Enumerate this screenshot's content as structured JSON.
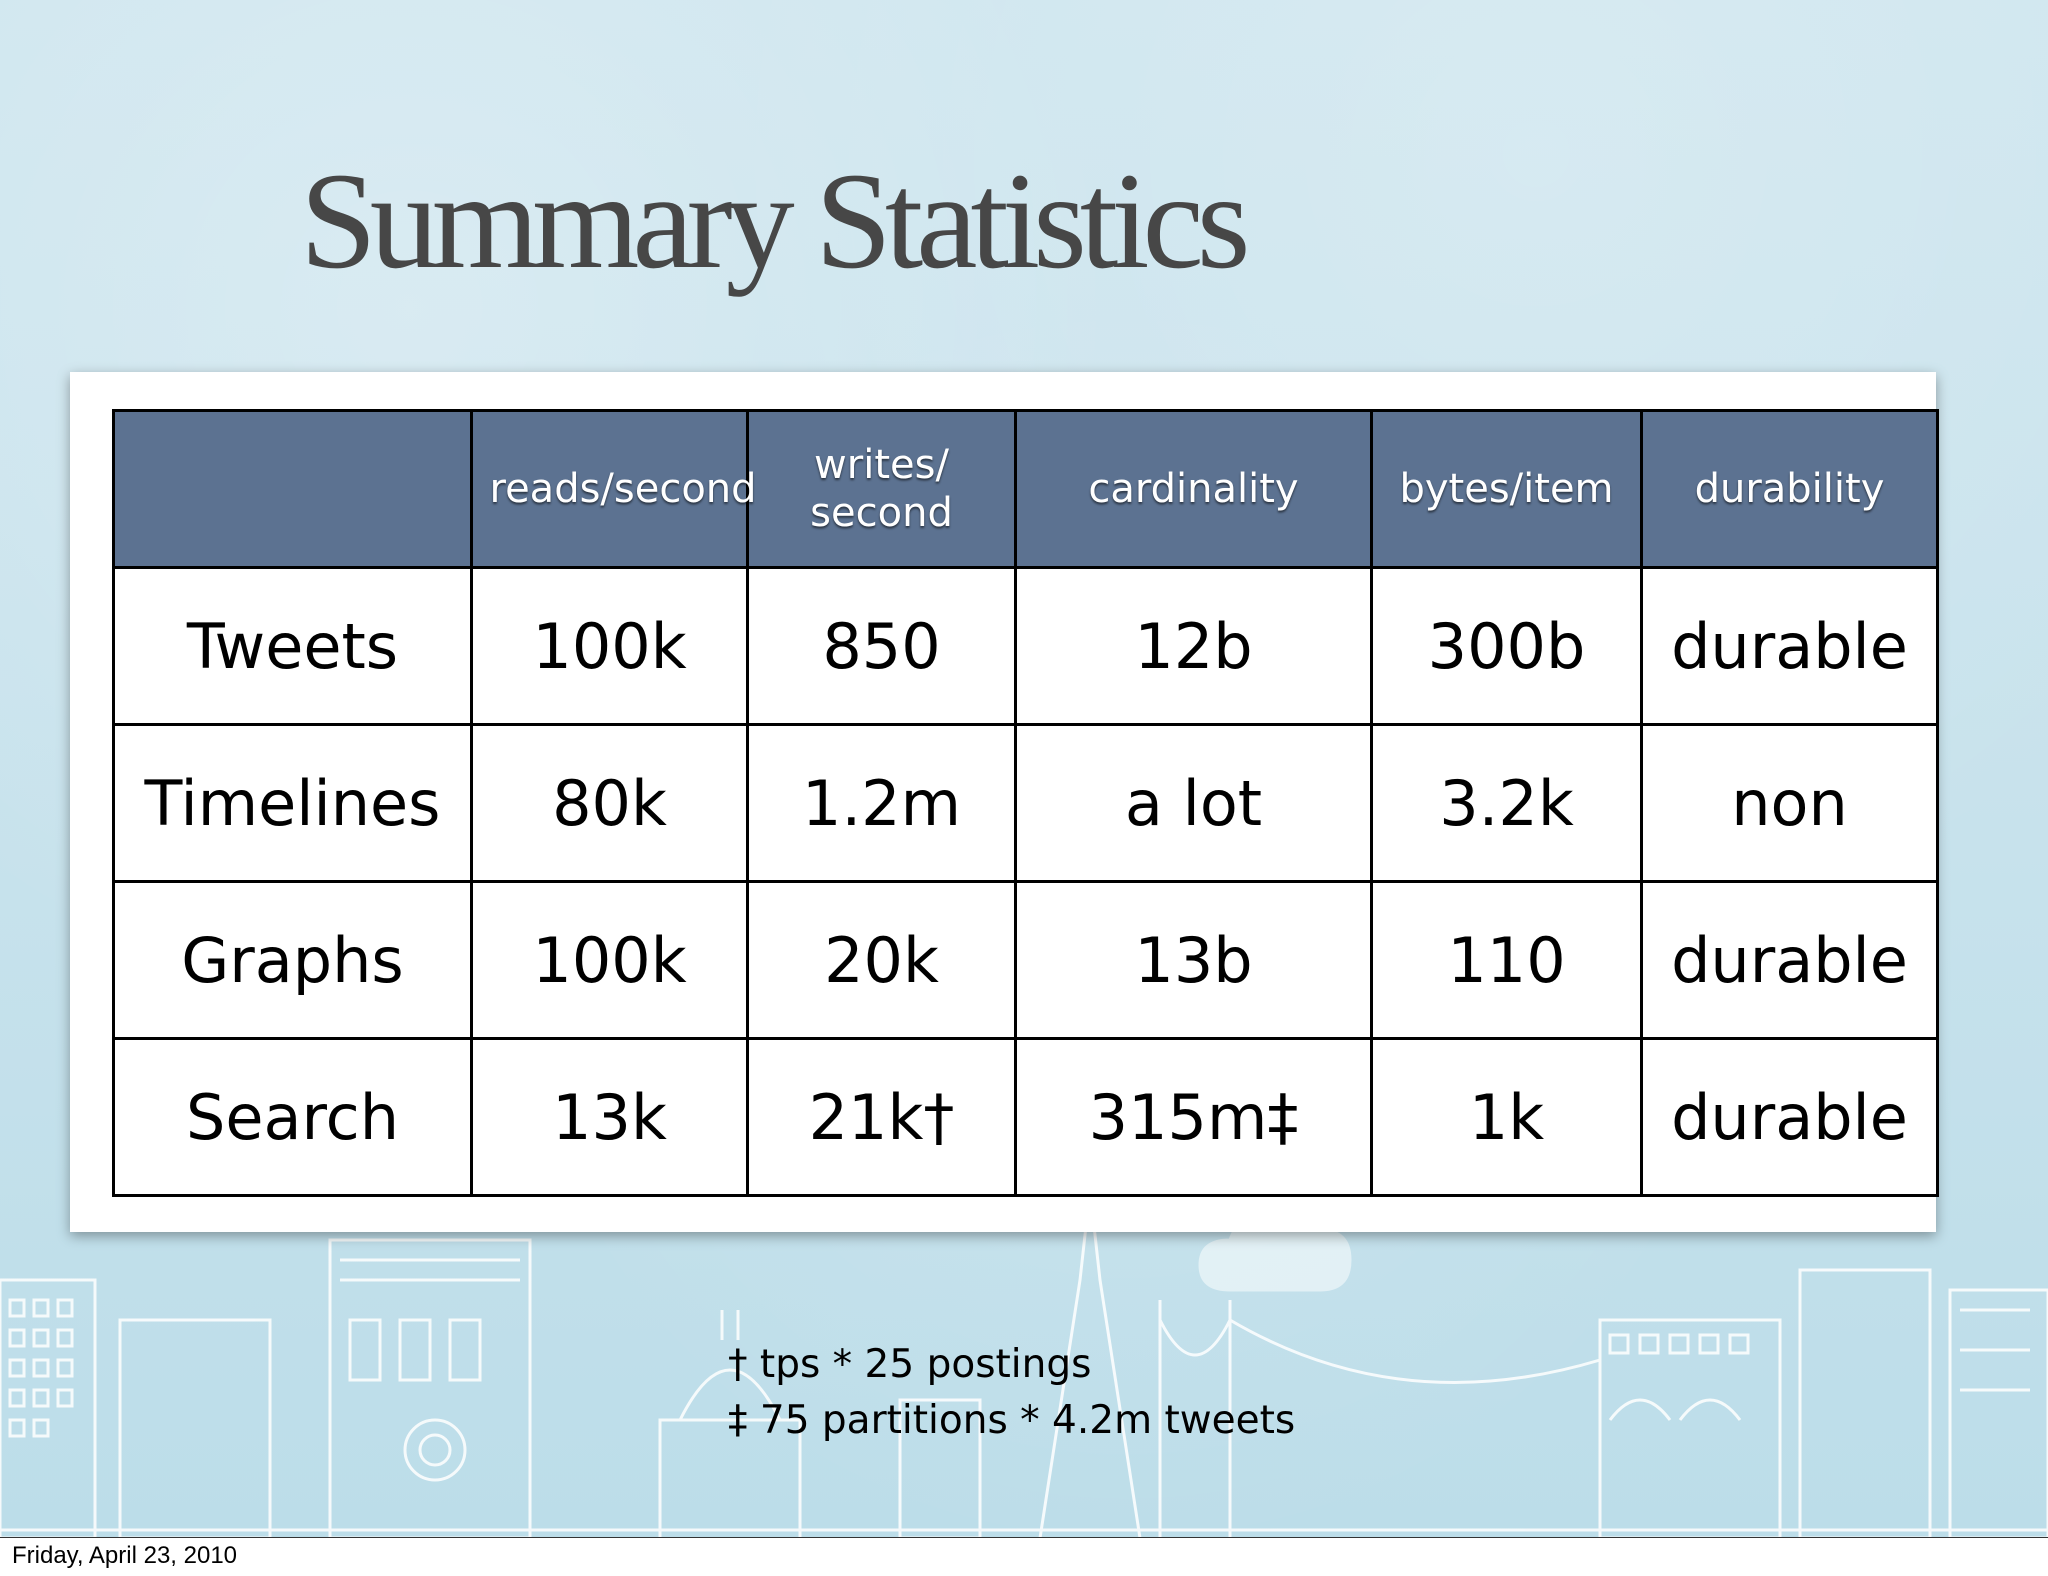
{
  "slide": {
    "title": "Summary Statistics",
    "background_color": "#c7e2ec",
    "header_color": "#5c7291"
  },
  "table": {
    "headers": [
      "",
      "reads/second",
      "writes/ second",
      "cardinality",
      "bytes/item",
      "durability"
    ],
    "rows": [
      [
        "Tweets",
        "100k",
        "850",
        "12b",
        "300b",
        "durable"
      ],
      [
        "Timelines",
        "80k",
        "1.2m",
        "a lot",
        "3.2k",
        "non"
      ],
      [
        "Graphs",
        "100k",
        "20k",
        "13b",
        "110",
        "durable"
      ],
      [
        "Search",
        "13k",
        "21k†",
        "315m‡",
        "1k",
        "durable"
      ]
    ]
  },
  "footnotes": [
    "† tps * 25 postings",
    "‡ 75 partitions * 4.2m tweets"
  ],
  "footer": {
    "date": "Friday, April 23, 2010"
  }
}
